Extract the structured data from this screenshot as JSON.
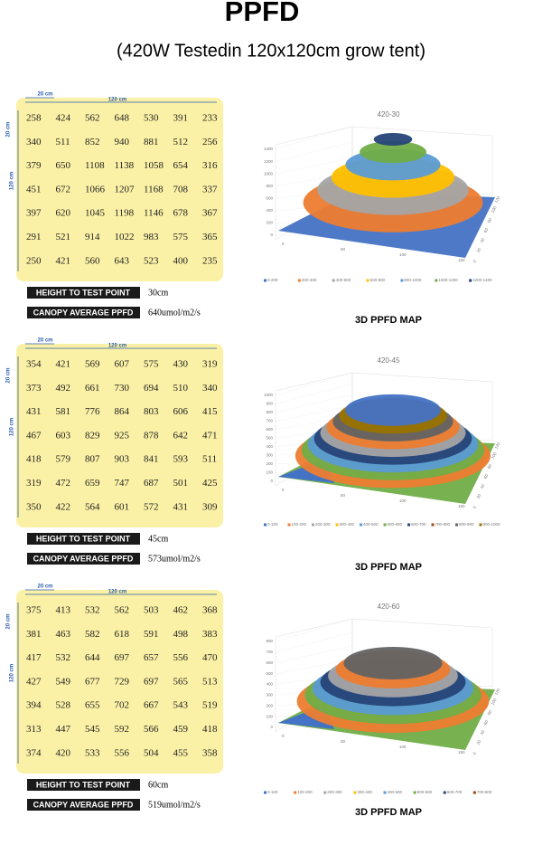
{
  "header": {
    "title": "PPFD",
    "subtitle": "(420W Testedin 120x120cm grow tent)"
  },
  "sections": [
    {
      "dim_top_small": "20 cm",
      "dim_top_large": "120 cm",
      "dim_left_small": "20 cm",
      "dim_left_large": "120 cm",
      "grid": [
        [
          258,
          424,
          562,
          648,
          530,
          391,
          233
        ],
        [
          340,
          511,
          852,
          940,
          881,
          512,
          256
        ],
        [
          379,
          650,
          1108,
          1138,
          1058,
          654,
          316
        ],
        [
          451,
          672,
          1066,
          1207,
          1168,
          708,
          337
        ],
        [
          397,
          620,
          1045,
          1198,
          1146,
          678,
          367
        ],
        [
          291,
          521,
          914,
          1022,
          983,
          575,
          365
        ],
        [
          250,
          421,
          560,
          643,
          523,
          400,
          235
        ]
      ],
      "height_label": "HEIGHT TO TEST POINT",
      "height_value": "30cm",
      "canopy_label": "CANOPY AVERAGE PPFD",
      "canopy_value": "640umol/m2/s",
      "chart": {
        "title": "420-30",
        "z_ticks": [
          "1400",
          "1200",
          "1000",
          "800",
          "600",
          "400",
          "200",
          "0"
        ],
        "x_ticks": [
          "0",
          "50",
          "100",
          "150"
        ],
        "y_ticks": [
          "0",
          "20",
          "40",
          "60",
          "80",
          "100",
          "120"
        ],
        "legend": [
          "0-200",
          "200-400",
          "400-600",
          "600-800",
          "800-1000",
          "1000-1200",
          "1200-1400"
        ]
      },
      "map_label": "3D PPFD MAP"
    },
    {
      "dim_top_small": "20 cm",
      "dim_top_large": "120 cm",
      "dim_left_small": "20 cm",
      "dim_left_large": "120 cm",
      "grid": [
        [
          354,
          421,
          569,
          607,
          575,
          430,
          319
        ],
        [
          373,
          492,
          661,
          730,
          694,
          510,
          340
        ],
        [
          431,
          581,
          776,
          864,
          803,
          606,
          415
        ],
        [
          467,
          603,
          829,
          925,
          878,
          642,
          471
        ],
        [
          418,
          579,
          807,
          903,
          841,
          593,
          511
        ],
        [
          319,
          472,
          659,
          747,
          687,
          501,
          425
        ],
        [
          350,
          422,
          564,
          601,
          572,
          431,
          309
        ]
      ],
      "height_label": "HEIGHT TO TEST POINT",
      "height_value": "45cm",
      "canopy_label": "CANOPY AVERAGE PPFD",
      "canopy_value": "573umol/m2/s",
      "chart": {
        "title": "420-45",
        "z_ticks": [
          "1000",
          "900",
          "800",
          "700",
          "600",
          "500",
          "400",
          "300",
          "200",
          "100",
          "0"
        ],
        "x_ticks": [
          "0",
          "50",
          "100",
          "150"
        ],
        "y_ticks": [
          "0",
          "20",
          "40",
          "60",
          "80",
          "100",
          "120"
        ],
        "legend": [
          "0-100",
          "100-200",
          "200-300",
          "300-400",
          "400-500",
          "500-600",
          "600-700",
          "700-800",
          "800-900",
          "900-1000"
        ]
      },
      "map_label": "3D PPFD MAP"
    },
    {
      "dim_top_small": "20 cm",
      "dim_top_large": "120 cm",
      "dim_left_small": "20 cm",
      "dim_left_large": "120 cm",
      "grid": [
        [
          375,
          413,
          532,
          562,
          503,
          462,
          368
        ],
        [
          381,
          463,
          582,
          618,
          591,
          498,
          383
        ],
        [
          417,
          532,
          644,
          697,
          657,
          556,
          470
        ],
        [
          427,
          549,
          677,
          729,
          697,
          565,
          513
        ],
        [
          394,
          528,
          655,
          702,
          667,
          543,
          519
        ],
        [
          313,
          447,
          545,
          592,
          566,
          459,
          418
        ],
        [
          374,
          420,
          533,
          556,
          504,
          455,
          358
        ]
      ],
      "height_label": "HEIGHT TO TEST POINT",
      "height_value": "60cm",
      "canopy_label": "CANOPY AVERAGE PPFD",
      "canopy_value": "519umol/m2/s",
      "chart": {
        "title": "420-60",
        "z_ticks": [
          "800",
          "700",
          "600",
          "500",
          "400",
          "300",
          "200",
          "100",
          "0"
        ],
        "x_ticks": [
          "0",
          "50",
          "100",
          "150"
        ],
        "y_ticks": [
          "0",
          "20",
          "40",
          "60",
          "80",
          "100",
          "120"
        ],
        "legend": [
          "0-100",
          "100-200",
          "200-300",
          "300-400",
          "400-500",
          "500-600",
          "600-700",
          "700-800"
        ]
      },
      "map_label": "3D PPFD MAP"
    }
  ]
}
